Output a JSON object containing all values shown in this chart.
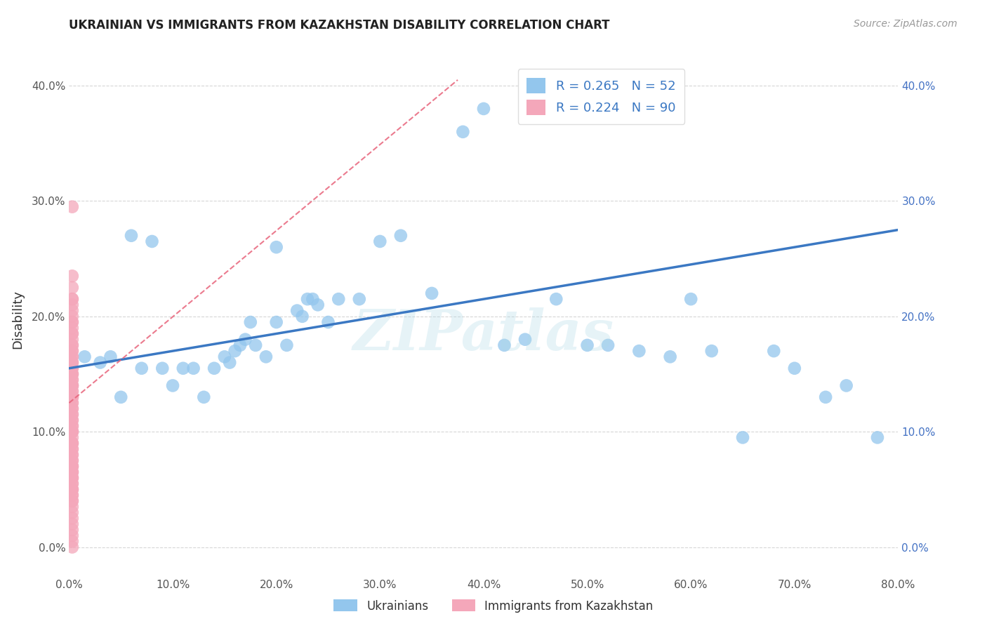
{
  "title": "UKRAINIAN VS IMMIGRANTS FROM KAZAKHSTAN DISABILITY CORRELATION CHART",
  "source": "Source: ZipAtlas.com",
  "ylabel": "Disability",
  "xlim": [
    0.0,
    0.8
  ],
  "ylim": [
    -0.025,
    0.42
  ],
  "blue_R": 0.265,
  "blue_N": 52,
  "pink_R": 0.224,
  "pink_N": 90,
  "blue_color": "#93C6ED",
  "pink_color": "#F4A7BA",
  "blue_line_color": "#3B78C3",
  "pink_line_color": "#E8637A",
  "watermark": "ZIPatlas",
  "legend_label_blue": "Ukrainians",
  "legend_label_pink": "Immigrants from Kazakhstan",
  "blue_points_x": [
    0.015,
    0.03,
    0.05,
    0.07,
    0.09,
    0.1,
    0.11,
    0.12,
    0.13,
    0.14,
    0.15,
    0.155,
    0.16,
    0.165,
    0.17,
    0.175,
    0.18,
    0.19,
    0.2,
    0.21,
    0.22,
    0.225,
    0.23,
    0.235,
    0.24,
    0.25,
    0.26,
    0.28,
    0.3,
    0.32,
    0.35,
    0.38,
    0.4,
    0.42,
    0.44,
    0.47,
    0.5,
    0.52,
    0.55,
    0.58,
    0.6,
    0.62,
    0.65,
    0.68,
    0.7,
    0.73,
    0.75,
    0.78,
    0.08,
    0.06,
    0.04,
    0.2
  ],
  "blue_points_y": [
    0.165,
    0.16,
    0.13,
    0.155,
    0.155,
    0.14,
    0.155,
    0.155,
    0.13,
    0.155,
    0.165,
    0.16,
    0.17,
    0.175,
    0.18,
    0.195,
    0.175,
    0.165,
    0.195,
    0.175,
    0.205,
    0.2,
    0.215,
    0.215,
    0.21,
    0.195,
    0.215,
    0.215,
    0.265,
    0.27,
    0.22,
    0.36,
    0.38,
    0.175,
    0.18,
    0.215,
    0.175,
    0.175,
    0.17,
    0.165,
    0.215,
    0.17,
    0.095,
    0.17,
    0.155,
    0.13,
    0.14,
    0.095,
    0.265,
    0.27,
    0.165,
    0.26
  ],
  "pink_points_x": [
    0.003,
    0.003,
    0.003,
    0.003,
    0.003,
    0.003,
    0.003,
    0.003,
    0.003,
    0.003,
    0.003,
    0.003,
    0.003,
    0.003,
    0.003,
    0.003,
    0.003,
    0.003,
    0.003,
    0.003,
    0.003,
    0.003,
    0.003,
    0.003,
    0.003,
    0.003,
    0.003,
    0.003,
    0.003,
    0.003,
    0.003,
    0.003,
    0.003,
    0.003,
    0.003,
    0.003,
    0.003,
    0.003,
    0.003,
    0.003,
    0.003,
    0.003,
    0.003,
    0.003,
    0.003,
    0.003,
    0.003,
    0.003,
    0.003,
    0.003,
    0.003,
    0.003,
    0.003,
    0.003,
    0.003,
    0.003,
    0.003,
    0.003,
    0.003,
    0.003,
    0.003,
    0.003,
    0.003,
    0.003,
    0.003,
    0.003,
    0.003,
    0.003,
    0.003,
    0.003,
    0.003,
    0.003,
    0.003,
    0.003,
    0.003,
    0.003,
    0.003,
    0.003,
    0.003,
    0.003,
    0.003,
    0.003,
    0.003,
    0.003,
    0.003,
    0.003,
    0.003,
    0.003,
    0.003,
    0.003
  ],
  "pink_points_y": [
    0.295,
    0.235,
    0.225,
    0.215,
    0.215,
    0.21,
    0.205,
    0.2,
    0.195,
    0.195,
    0.19,
    0.185,
    0.185,
    0.18,
    0.175,
    0.175,
    0.17,
    0.17,
    0.165,
    0.165,
    0.16,
    0.16,
    0.16,
    0.155,
    0.155,
    0.15,
    0.15,
    0.15,
    0.145,
    0.145,
    0.14,
    0.14,
    0.14,
    0.14,
    0.135,
    0.135,
    0.13,
    0.13,
    0.13,
    0.13,
    0.125,
    0.125,
    0.12,
    0.12,
    0.115,
    0.115,
    0.11,
    0.11,
    0.105,
    0.105,
    0.1,
    0.1,
    0.1,
    0.1,
    0.095,
    0.09,
    0.09,
    0.09,
    0.085,
    0.085,
    0.08,
    0.08,
    0.075,
    0.075,
    0.07,
    0.07,
    0.065,
    0.065,
    0.06,
    0.055,
    0.055,
    0.05,
    0.05,
    0.045,
    0.045,
    0.04,
    0.035,
    0.03,
    0.025,
    0.02,
    0.015,
    0.01,
    0.005,
    0.0,
    0.06,
    0.06,
    0.05,
    0.07,
    0.065,
    0.04
  ],
  "blue_line_x": [
    0.0,
    0.8
  ],
  "blue_line_y": [
    0.155,
    0.275
  ],
  "pink_line_x": [
    0.0,
    0.375
  ],
  "pink_line_y": [
    0.125,
    0.405
  ],
  "background_color": "#FFFFFF",
  "grid_color": "#CCCCCC",
  "xtick_vals": [
    0.0,
    0.1,
    0.2,
    0.3,
    0.4,
    0.5,
    0.6,
    0.7,
    0.8
  ],
  "ytick_vals": [
    0.0,
    0.1,
    0.2,
    0.3,
    0.4
  ]
}
